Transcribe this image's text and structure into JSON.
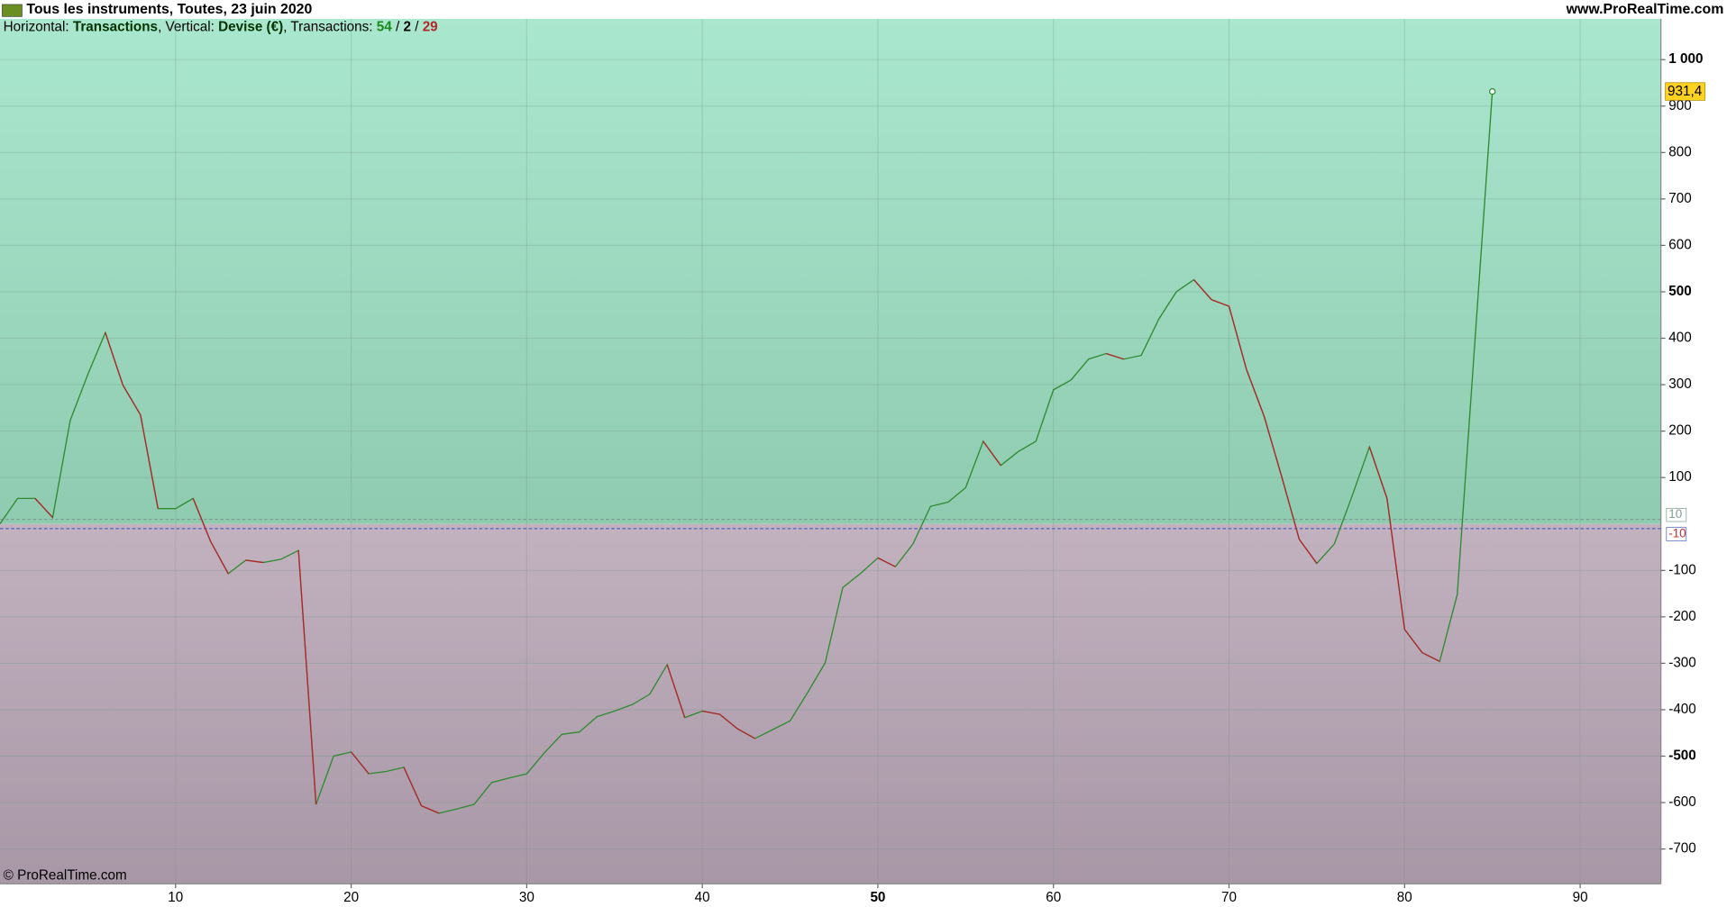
{
  "chart_data": {
    "type": "line",
    "title": "Tous les instruments, Toutes, 23 juin 2020",
    "source": "www.ProRealTime.com",
    "watermark": "© ProRealTime.com",
    "subtitle": {
      "h_label": "Horizontal: ",
      "h_value": "Transactions",
      "v_label": ", Vertical: ",
      "v_value": "Devise (€)",
      "t_label": ", Transactions: ",
      "winners": 54,
      "sep1": " / ",
      "neutral": 2,
      "sep2": " / ",
      "losers": 29
    },
    "x": [
      0,
      1,
      2,
      3,
      4,
      5,
      6,
      7,
      8,
      9,
      10,
      11,
      12,
      13,
      14,
      15,
      16,
      17,
      18,
      19,
      20,
      21,
      22,
      23,
      24,
      25,
      26,
      27,
      28,
      29,
      30,
      31,
      32,
      33,
      34,
      35,
      36,
      37,
      38,
      39,
      40,
      41,
      42,
      43,
      44,
      45,
      46,
      47,
      48,
      49,
      50,
      51,
      52,
      53,
      54,
      55,
      56,
      57,
      58,
      59,
      60,
      61,
      62,
      63,
      64,
      65,
      66,
      67,
      68,
      69,
      70,
      71,
      72,
      73,
      74,
      75,
      76,
      77,
      78,
      79,
      80,
      81,
      82,
      83,
      84,
      85
    ],
    "series": [
      {
        "name": "Devise (€)",
        "color": "#2e8b2e",
        "down_color": "#b3262a",
        "values": [
          0,
          55,
          55,
          14,
          223,
          322,
          412,
          299,
          235,
          33,
          33,
          55,
          -38,
          -107,
          -78,
          -83,
          -76,
          -57,
          -604,
          -500,
          -491,
          -538,
          -533,
          -524,
          -607,
          -623,
          -614,
          -604,
          -557,
          -547,
          -538,
          -493,
          -453,
          -448,
          -415,
          -403,
          -389,
          -367,
          -303,
          -417,
          -403,
          -410,
          -441,
          -462,
          -443,
          -424,
          -363,
          -299,
          -137,
          -107,
          -73,
          -92,
          -43,
          38,
          47,
          78,
          178,
          126,
          156,
          178,
          289,
          310,
          355,
          367,
          355,
          363,
          441,
          500,
          526,
          483,
          469,
          332,
          232,
          102,
          -33,
          -85,
          -43,
          59,
          166,
          55,
          -227,
          -277,
          -296,
          -152,
          390,
          931.4
        ],
        "last_label": "931,4"
      }
    ],
    "reference_lines": [
      {
        "value": 10,
        "label": "10",
        "color": "#7fa090"
      },
      {
        "value": -10,
        "label": "-10",
        "color": "#5060c0"
      }
    ],
    "xlim": [
      0,
      94.6
    ],
    "ylim": [
      -775,
      1088
    ],
    "xticks": [
      10,
      20,
      30,
      40,
      50,
      60,
      70,
      80,
      90
    ],
    "yticks": [
      -700,
      -600,
      -500,
      -400,
      -300,
      -200,
      -100,
      100,
      200,
      300,
      400,
      500,
      600,
      700,
      800,
      900,
      {
        "value": 1000,
        "label": "1 000"
      }
    ],
    "grid": true
  }
}
